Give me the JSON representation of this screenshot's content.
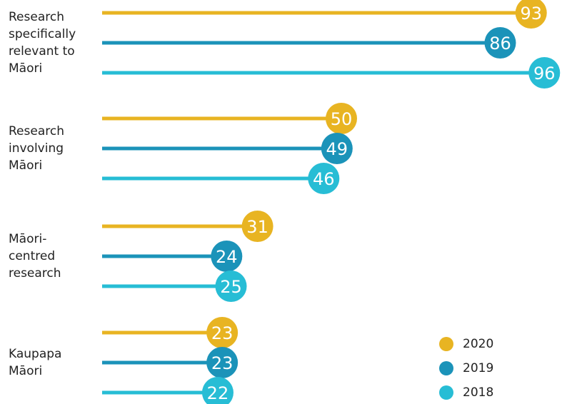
{
  "chart_data": {
    "type": "lollipop",
    "categories": [
      "Research specifically relevant to Māori",
      "Research involving Māori",
      "Māori-centred research",
      "Kaupapa Māori"
    ],
    "series": [
      {
        "name": "2020",
        "color": "#e8b422",
        "values": [
          93,
          50,
          31,
          23
        ]
      },
      {
        "name": "2019",
        "color": "#1b93b9",
        "values": [
          86,
          49,
          24,
          23
        ]
      },
      {
        "name": "2018",
        "color": "#27bdd5",
        "values": [
          96,
          46,
          25,
          22
        ]
      }
    ],
    "legend": "bottom-right"
  }
}
